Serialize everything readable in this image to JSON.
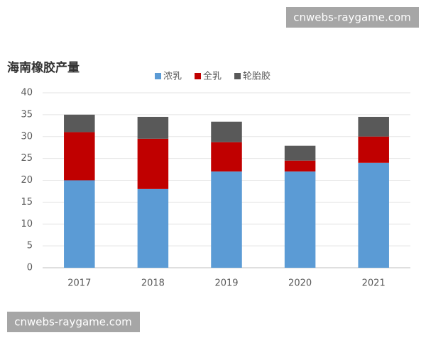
{
  "watermarks": [
    "cnwebs-raygame.com",
    "cnwebs-raygame.com"
  ],
  "chart_data": {
    "type": "stacked_bar",
    "title": "海南橡胶产量",
    "categories": [
      "2017",
      "2018",
      "2019",
      "2020",
      "2021"
    ],
    "series": [
      {
        "name": "浓乳",
        "color": "#5b9bd5",
        "values": [
          20,
          18,
          22,
          22,
          24
        ]
      },
      {
        "name": "全乳",
        "color": "#c00000",
        "values": [
          11,
          11.5,
          6.7,
          2.5,
          6
        ]
      },
      {
        "name": "轮胎胶",
        "color": "#595959",
        "values": [
          4,
          5,
          4.7,
          3.4,
          4.5
        ]
      }
    ],
    "ylim": [
      0,
      40
    ],
    "yticks": [
      0,
      5,
      10,
      15,
      20,
      25,
      30,
      35,
      40
    ],
    "grid": true,
    "legend": "top"
  }
}
